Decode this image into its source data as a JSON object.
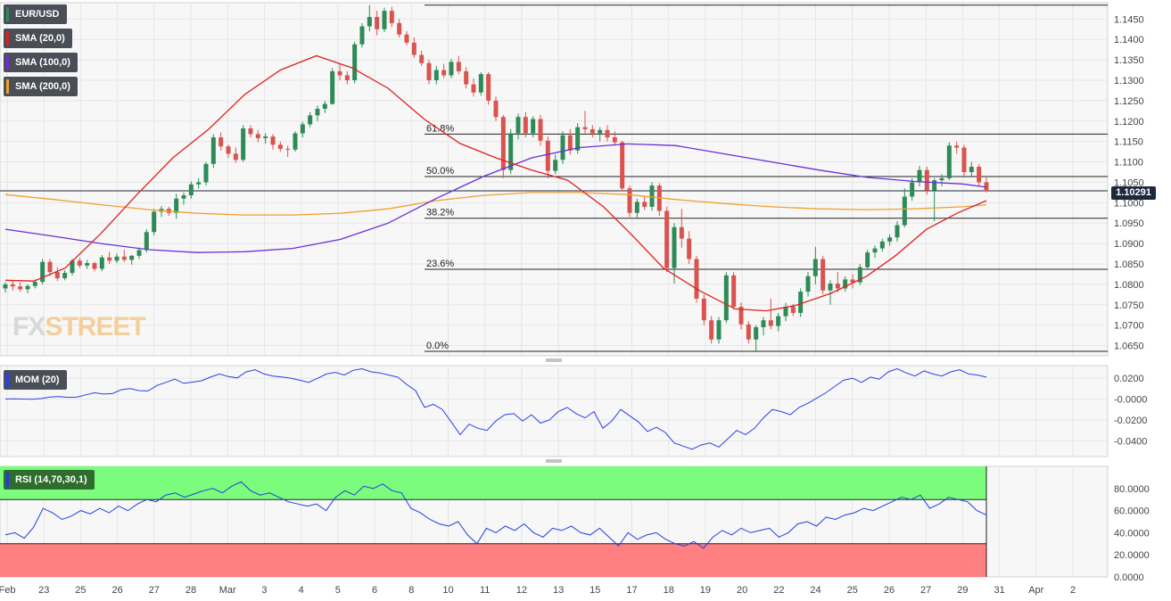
{
  "chart_data": {
    "type": "candlestick",
    "symbol": "EUR/USD",
    "last_price": "1.10291",
    "legend": [
      {
        "label": "EUR/USD",
        "color": "#2e8b57"
      },
      {
        "label": "SMA (20,0)",
        "color": "#e02020"
      },
      {
        "label": "SMA (100,0)",
        "color": "#6a2fd8"
      },
      {
        "label": "SMA (200,0)",
        "color": "#f0a030"
      }
    ],
    "colors": {
      "up": "#2e8b57",
      "down": "#d9534f",
      "sma20": "#e02020",
      "sma100": "#6a2fd8",
      "sma200": "#f0a030",
      "overbought_zone": "#7cfc7c",
      "oversold_zone": "#ff8080",
      "momentum": "#2b3ee8"
    },
    "price_axis": {
      "range": [
        1.0625,
        1.149
      ],
      "ticks": [
        "1.1450",
        "1.1400",
        "1.1350",
        "1.1300",
        "1.1250",
        "1.1200",
        "1.1150",
        "1.1100",
        "1.1050",
        "1.1000",
        "1.0950",
        "1.0900",
        "1.0850",
        "1.0800",
        "1.0750",
        "1.0700",
        "1.0650"
      ]
    },
    "x_axis_labels": [
      "Feb",
      "23",
      "25",
      "26",
      "27",
      "28",
      "Mar",
      "3",
      "4",
      "5",
      "6",
      "8",
      "10",
      "11",
      "12",
      "13",
      "15",
      "17",
      "18",
      "19",
      "20",
      "22",
      "24",
      "25",
      "26",
      "27",
      "29",
      "31",
      "Apr",
      "2"
    ],
    "fibonacci": {
      "levels": [
        {
          "label": "61.8%",
          "value": 1.1168
        },
        {
          "label": "50.0%",
          "value": 1.1064
        },
        {
          "label": "38.2%",
          "value": 1.0962
        },
        {
          "label": "23.6%",
          "value": 1.0837
        },
        {
          "label": "0.0%",
          "value": 1.0636
        }
      ],
      "high": 1.1484
    },
    "candles": [
      [
        1.079,
        1.0805,
        1.078,
        1.08
      ],
      [
        1.08,
        1.081,
        1.0785,
        1.0795
      ],
      [
        1.0795,
        1.0805,
        1.0782,
        1.0788
      ],
      [
        1.0788,
        1.08,
        1.0778,
        1.0796
      ],
      [
        1.0796,
        1.0812,
        1.079,
        1.0806
      ],
      [
        1.0806,
        1.0862,
        1.08,
        1.0855
      ],
      [
        1.0855,
        1.0862,
        1.082,
        1.083
      ],
      [
        1.083,
        1.0842,
        1.0808,
        1.0815
      ],
      [
        1.0815,
        1.0835,
        1.081,
        1.0828
      ],
      [
        1.0828,
        1.0862,
        1.0822,
        1.0858
      ],
      [
        1.0858,
        1.0865,
        1.084,
        1.0846
      ],
      [
        1.0846,
        1.086,
        1.0838,
        1.0852
      ],
      [
        1.0852,
        1.0856,
        1.0832,
        1.0838
      ],
      [
        1.0838,
        1.0872,
        1.0832,
        1.0866
      ],
      [
        1.0866,
        1.088,
        1.085,
        1.0858
      ],
      [
        1.0858,
        1.0875,
        1.0852,
        1.0868
      ],
      [
        1.0868,
        1.0885,
        1.0855,
        1.086
      ],
      [
        1.086,
        1.0872,
        1.0848,
        1.087
      ],
      [
        1.087,
        1.089,
        1.0862,
        1.0884
      ],
      [
        1.0884,
        1.0935,
        1.0878,
        1.0928
      ],
      [
        1.0928,
        1.0985,
        1.092,
        1.0978
      ],
      [
        1.0978,
        1.0992,
        1.0965,
        1.0985
      ],
      [
        1.0985,
        1.099,
        1.0968,
        1.0975
      ],
      [
        1.0975,
        1.1022,
        1.096,
        1.101
      ],
      [
        1.101,
        1.1025,
        1.0995,
        1.1018
      ],
      [
        1.1018,
        1.1052,
        1.101,
        1.1045
      ],
      [
        1.1045,
        1.106,
        1.1035,
        1.105
      ],
      [
        1.105,
        1.11,
        1.1042,
        1.1095
      ],
      [
        1.1095,
        1.1168,
        1.1085,
        1.116
      ],
      [
        1.116,
        1.1172,
        1.1128,
        1.1138
      ],
      [
        1.1138,
        1.1142,
        1.111,
        1.112
      ],
      [
        1.112,
        1.1135,
        1.1098,
        1.1105
      ],
      [
        1.1105,
        1.119,
        1.11,
        1.1182
      ],
      [
        1.1182,
        1.119,
        1.116,
        1.1168
      ],
      [
        1.1168,
        1.1178,
        1.1148,
        1.1158
      ],
      [
        1.1158,
        1.117,
        1.1145,
        1.1162
      ],
      [
        1.1162,
        1.1168,
        1.113,
        1.1142
      ],
      [
        1.1142,
        1.115,
        1.1125,
        1.1132
      ],
      [
        1.1132,
        1.114,
        1.1112,
        1.113
      ],
      [
        1.113,
        1.1175,
        1.1125,
        1.117
      ],
      [
        1.117,
        1.1198,
        1.116,
        1.1192
      ],
      [
        1.1192,
        1.1222,
        1.1185,
        1.1214
      ],
      [
        1.1214,
        1.1238,
        1.12,
        1.123
      ],
      [
        1.123,
        1.125,
        1.122,
        1.1242
      ],
      [
        1.1242,
        1.133,
        1.124,
        1.1322
      ],
      [
        1.1322,
        1.134,
        1.13,
        1.1312
      ],
      [
        1.1312,
        1.1322,
        1.129,
        1.13
      ],
      [
        1.13,
        1.1395,
        1.1292,
        1.1388
      ],
      [
        1.1388,
        1.144,
        1.138,
        1.1432
      ],
      [
        1.1432,
        1.1484,
        1.142,
        1.1455
      ],
      [
        1.1455,
        1.147,
        1.141,
        1.1425
      ],
      [
        1.1425,
        1.1478,
        1.1418,
        1.147
      ],
      [
        1.147,
        1.148,
        1.143,
        1.144
      ],
      [
        1.144,
        1.145,
        1.1405,
        1.1412
      ],
      [
        1.1412,
        1.142,
        1.1385,
        1.1392
      ],
      [
        1.1392,
        1.1405,
        1.1355,
        1.1362
      ],
      [
        1.1362,
        1.1372,
        1.1335,
        1.1342
      ],
      [
        1.1342,
        1.135,
        1.129,
        1.13
      ],
      [
        1.13,
        1.1335,
        1.129,
        1.1325
      ],
      [
        1.1325,
        1.134,
        1.1305,
        1.1312
      ],
      [
        1.1312,
        1.1352,
        1.1305,
        1.1345
      ],
      [
        1.1345,
        1.136,
        1.1315,
        1.1322
      ],
      [
        1.1322,
        1.1332,
        1.128,
        1.129
      ],
      [
        1.129,
        1.1305,
        1.126,
        1.127
      ],
      [
        1.127,
        1.132,
        1.1262,
        1.1315
      ],
      [
        1.1315,
        1.132,
        1.124,
        1.125
      ],
      [
        1.125,
        1.126,
        1.12,
        1.121
      ],
      [
        1.121,
        1.1215,
        1.106,
        1.108
      ],
      [
        1.108,
        1.118,
        1.107,
        1.117
      ],
      [
        1.117,
        1.1218,
        1.1155,
        1.121
      ],
      [
        1.121,
        1.1222,
        1.116,
        1.117
      ],
      [
        1.117,
        1.1212,
        1.116,
        1.1205
      ],
      [
        1.1205,
        1.1215,
        1.114,
        1.1152
      ],
      [
        1.1152,
        1.1162,
        1.106,
        1.1078
      ],
      [
        1.1078,
        1.1118,
        1.107,
        1.1105
      ],
      [
        1.1105,
        1.1175,
        1.1095,
        1.1165
      ],
      [
        1.1165,
        1.118,
        1.1118,
        1.1128
      ],
      [
        1.1128,
        1.1195,
        1.112,
        1.1185
      ],
      [
        1.1185,
        1.1225,
        1.117,
        1.118
      ],
      [
        1.118,
        1.119,
        1.116,
        1.117
      ],
      [
        1.117,
        1.1185,
        1.115,
        1.1178
      ],
      [
        1.1178,
        1.119,
        1.115,
        1.116
      ],
      [
        1.116,
        1.1175,
        1.114,
        1.1148
      ],
      [
        1.1148,
        1.1152,
        1.1028,
        1.1035
      ],
      [
        1.1035,
        1.1042,
        1.0965,
        1.0975
      ],
      [
        1.0975,
        1.101,
        1.096,
        1.1002
      ],
      [
        1.1002,
        1.1015,
        1.0982,
        1.099
      ],
      [
        1.099,
        1.105,
        1.098,
        1.1042
      ],
      [
        1.1042,
        1.1048,
        1.0968,
        1.098
      ],
      [
        1.098,
        1.099,
        1.083,
        1.084
      ],
      [
        1.084,
        1.095,
        1.0802,
        1.094
      ],
      [
        1.094,
        1.0985,
        1.089,
        1.0912
      ],
      [
        1.0912,
        1.093,
        1.085,
        1.0862
      ],
      [
        1.0862,
        1.087,
        1.0755,
        1.0765
      ],
      [
        1.0765,
        1.0775,
        1.07,
        1.0712
      ],
      [
        1.0712,
        1.0722,
        1.0655,
        1.0665
      ],
      [
        1.0665,
        1.072,
        1.0655,
        1.0712
      ],
      [
        1.0712,
        1.083,
        1.0705,
        1.0822
      ],
      [
        1.0822,
        1.083,
        1.0738,
        1.0745
      ],
      [
        1.0745,
        1.0755,
        1.069,
        1.0702
      ],
      [
        1.0702,
        1.071,
        1.0655,
        1.0665
      ],
      [
        1.0665,
        1.07,
        1.0636,
        1.0695
      ],
      [
        1.0695,
        1.072,
        1.0675,
        1.0712
      ],
      [
        1.0712,
        1.0765,
        1.069,
        1.0698
      ],
      [
        1.0698,
        1.073,
        1.0685,
        1.0722
      ],
      [
        1.0722,
        1.0755,
        1.071,
        1.0745
      ],
      [
        1.0745,
        1.0752,
        1.0722,
        1.073
      ],
      [
        1.073,
        1.079,
        1.072,
        1.0782
      ],
      [
        1.0782,
        1.083,
        1.077,
        1.082
      ],
      [
        1.082,
        1.0892,
        1.08,
        1.0862
      ],
      [
        1.0862,
        1.087,
        1.0775,
        1.0785
      ],
      [
        1.0785,
        1.081,
        1.075,
        1.0802
      ],
      [
        1.0802,
        1.083,
        1.078,
        1.079
      ],
      [
        1.079,
        1.082,
        1.0782,
        1.0812
      ],
      [
        1.0812,
        1.0825,
        1.079,
        1.0805
      ],
      [
        1.0805,
        1.085,
        1.0798,
        1.0842
      ],
      [
        1.0842,
        1.0885,
        1.0835,
        1.0878
      ],
      [
        1.0878,
        1.0895,
        1.0865,
        1.0888
      ],
      [
        1.0888,
        1.0912,
        1.088,
        1.0905
      ],
      [
        1.0905,
        1.0922,
        1.0895,
        1.0915
      ],
      [
        1.0915,
        1.0955,
        1.0905,
        1.0945
      ],
      [
        1.0945,
        1.1035,
        1.094,
        1.1015
      ],
      [
        1.1015,
        1.106,
        1.1005,
        1.105
      ],
      [
        1.105,
        1.109,
        1.104,
        1.108
      ],
      [
        1.108,
        1.1088,
        1.102,
        1.103
      ],
      [
        1.103,
        1.106,
        1.0955,
        1.1055
      ],
      [
        1.1055,
        1.107,
        1.104,
        1.106
      ],
      [
        1.106,
        1.1148,
        1.1055,
        1.114
      ],
      [
        1.114,
        1.115,
        1.112,
        1.1135
      ],
      [
        1.1135,
        1.1142,
        1.1065,
        1.1075
      ],
      [
        1.1075,
        1.11,
        1.1062,
        1.1088
      ],
      [
        1.1088,
        1.1095,
        1.104,
        1.105
      ],
      [
        1.105,
        1.1062,
        1.1025,
        1.1029
      ]
    ],
    "sma20": [
      [
        0,
        1.081
      ],
      [
        12,
        1.0808
      ],
      [
        25,
        1.084
      ],
      [
        40,
        1.0925
      ],
      [
        55,
        1.102
      ],
      [
        70,
        1.111
      ],
      [
        85,
        1.118
      ],
      [
        100,
        1.1265
      ],
      [
        115,
        1.1325
      ],
      [
        130,
        1.136
      ],
      [
        145,
        1.133
      ],
      [
        160,
        1.128
      ],
      [
        175,
        1.1205
      ],
      [
        190,
        1.1145
      ],
      [
        205,
        1.111
      ],
      [
        220,
        1.108
      ],
      [
        235,
        1.1055
      ],
      [
        250,
        1.099
      ],
      [
        262,
        1.092
      ],
      [
        275,
        1.084
      ],
      [
        290,
        1.0785
      ],
      [
        305,
        1.074
      ],
      [
        318,
        1.0735
      ],
      [
        330,
        1.0748
      ],
      [
        345,
        1.0778
      ],
      [
        360,
        1.082
      ],
      [
        372,
        1.087
      ],
      [
        385,
        1.0935
      ],
      [
        398,
        1.0975
      ],
      [
        410,
        1.1005
      ]
    ],
    "sma100": [
      [
        0,
        1.0935
      ],
      [
        20,
        1.0918
      ],
      [
        40,
        1.09
      ],
      [
        60,
        1.0885
      ],
      [
        80,
        1.0878
      ],
      [
        100,
        1.088
      ],
      [
        120,
        1.0888
      ],
      [
        140,
        1.091
      ],
      [
        160,
        1.095
      ],
      [
        180,
        1.101
      ],
      [
        200,
        1.1065
      ],
      [
        220,
        1.111
      ],
      [
        240,
        1.1135
      ],
      [
        260,
        1.1144
      ],
      [
        280,
        1.114
      ],
      [
        300,
        1.112
      ],
      [
        320,
        1.11
      ],
      [
        340,
        1.108
      ],
      [
        360,
        1.1062
      ],
      [
        380,
        1.1052
      ],
      [
        400,
        1.1046
      ],
      [
        410,
        1.1038
      ]
    ],
    "sma200": [
      [
        0,
        1.102
      ],
      [
        20,
        1.1008
      ],
      [
        40,
        1.0995
      ],
      [
        60,
        1.0983
      ],
      [
        80,
        1.0974
      ],
      [
        100,
        1.097
      ],
      [
        120,
        1.097
      ],
      [
        140,
        1.0974
      ],
      [
        160,
        1.0985
      ],
      [
        180,
        1.1005
      ],
      [
        200,
        1.1018
      ],
      [
        220,
        1.1025
      ],
      [
        240,
        1.1025
      ],
      [
        260,
        1.102
      ],
      [
        280,
        1.1008
      ],
      [
        300,
        1.0998
      ],
      [
        320,
        1.099
      ],
      [
        340,
        1.0985
      ],
      [
        360,
        1.0983
      ],
      [
        380,
        1.0985
      ],
      [
        400,
        1.099
      ],
      [
        410,
        1.0995
      ]
    ],
    "momentum": {
      "label": "MOM (20)",
      "ticks": [
        "0.0200",
        "-0.0000",
        "-0.0200",
        "-0.0400"
      ],
      "range": [
        -0.055,
        0.032
      ],
      "values": [
        0.0,
        0.0002,
        0.0,
        -0.0002,
        0.0004,
        0.002,
        0.0024,
        0.0016,
        0.0018,
        0.004,
        0.006,
        0.0048,
        0.0052,
        0.009,
        0.01,
        0.008,
        0.0078,
        0.013,
        0.016,
        0.019,
        0.015,
        0.0162,
        0.0175,
        0.021,
        0.024,
        0.0215,
        0.0202,
        0.026,
        0.028,
        0.024,
        0.022,
        0.0212,
        0.02,
        0.018,
        0.016,
        0.0198,
        0.024,
        0.0255,
        0.023,
        0.0275,
        0.029,
        0.026,
        0.025,
        0.023,
        0.021,
        0.014,
        0.008,
        -0.008,
        -0.005,
        -0.01,
        -0.022,
        -0.034,
        -0.024,
        -0.028,
        -0.03,
        -0.021,
        -0.015,
        -0.014,
        -0.021,
        -0.015,
        -0.023,
        -0.02,
        -0.012,
        -0.008,
        -0.014,
        -0.018,
        -0.012,
        -0.028,
        -0.021,
        -0.01,
        -0.016,
        -0.022,
        -0.031,
        -0.027,
        -0.032,
        -0.042,
        -0.045,
        -0.048,
        -0.044,
        -0.042,
        -0.046,
        -0.038,
        -0.03,
        -0.034,
        -0.028,
        -0.018,
        -0.01,
        -0.012,
        -0.015,
        -0.008,
        -0.004,
        0.001,
        0.006,
        0.012,
        0.018,
        0.02,
        0.016,
        0.021,
        0.019,
        0.026,
        0.029,
        0.025,
        0.022,
        0.027,
        0.024,
        0.022,
        0.026,
        0.028,
        0.024,
        0.023,
        0.021
      ]
    },
    "rsi": {
      "label": "RSI (14,70,30,1)",
      "ticks": [
        "80.0000",
        "60.0000",
        "40.0000",
        "20.0000",
        "0.0000"
      ],
      "range": [
        0,
        100
      ],
      "overbought": 70,
      "oversold": 30,
      "values": [
        38,
        40,
        35,
        45,
        62,
        58,
        52,
        55,
        60,
        57,
        62,
        58,
        64,
        60,
        66,
        70,
        68,
        74,
        76,
        72,
        75,
        78,
        80,
        76,
        82,
        86,
        78,
        74,
        76,
        72,
        68,
        66,
        64,
        66,
        60,
        72,
        78,
        74,
        82,
        80,
        84,
        78,
        76,
        62,
        58,
        52,
        48,
        46,
        50,
        38,
        30,
        44,
        40,
        46,
        42,
        48,
        40,
        36,
        44,
        42,
        46,
        40,
        38,
        44,
        36,
        28,
        40,
        34,
        38,
        40,
        34,
        30,
        28,
        32,
        26,
        36,
        42,
        38,
        44,
        40,
        42,
        44,
        36,
        40,
        48,
        50,
        46,
        54,
        52,
        56,
        58,
        62,
        60,
        64,
        68,
        72,
        70,
        74,
        62,
        66,
        72,
        70,
        68,
        60,
        56
      ]
    }
  }
}
